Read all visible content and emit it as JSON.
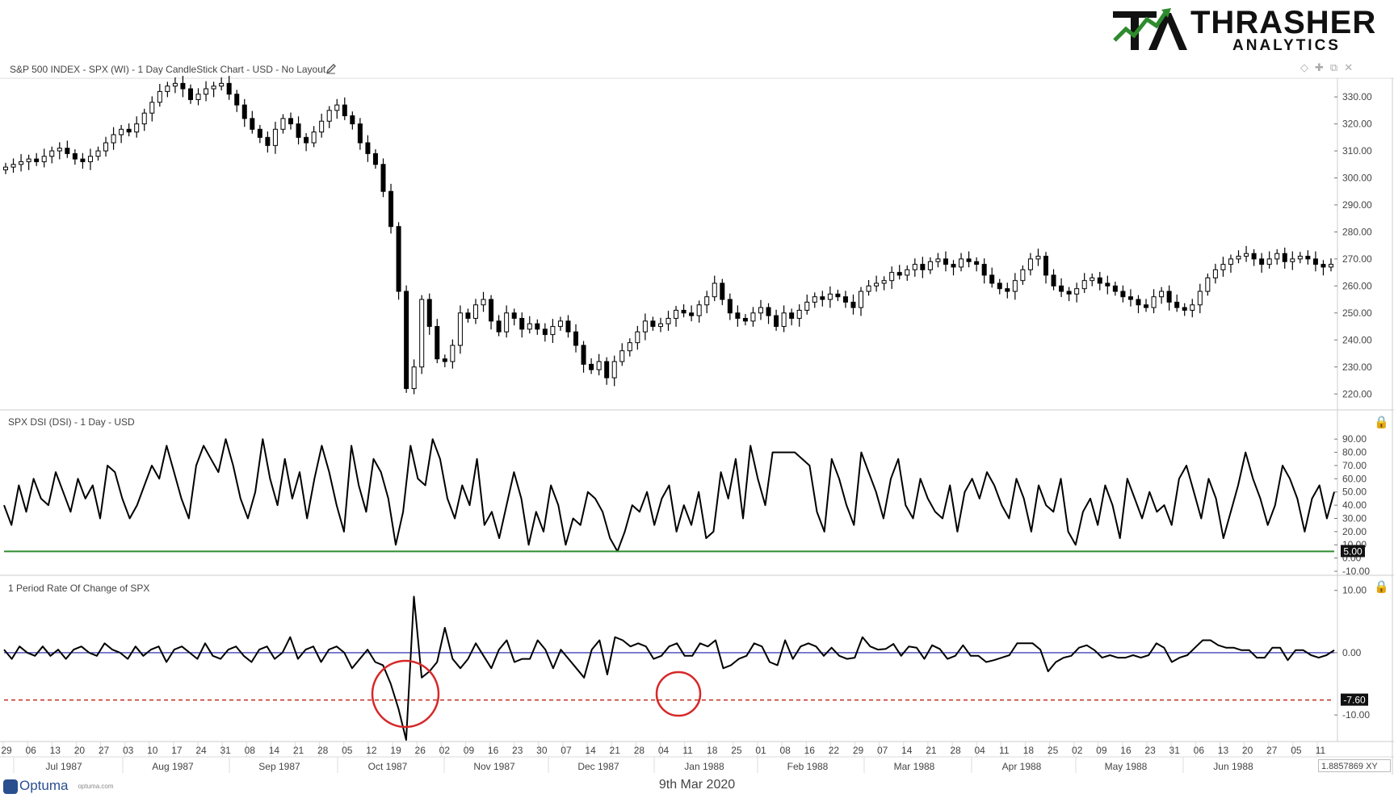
{
  "logo": {
    "word": "THRASHER",
    "sub": "ANALYTICS",
    "mark": "TA"
  },
  "panels": {
    "price_title": "S&P 500 INDEX - SPX (WI) - 1 Day CandleStick Chart - USD - No Layout",
    "dsi_title": "SPX DSI (DSI) - 1 Day - USD",
    "roc_title": "1 Period Rate Of Change of SPX"
  },
  "footer": {
    "date": "9th Mar 2020",
    "brand": "Optuma",
    "brand_sub": "optuma.com",
    "xy_value": "1.8857869",
    "xy_label": "XY"
  },
  "colors": {
    "candle": "#000000",
    "dsi_line": "#000000",
    "dsi_threshold": "#2e8b2e",
    "roc_zero": "#1a1aa8",
    "roc_threshold": "#c0392b",
    "circle": "#d62828"
  },
  "chart_data": [
    {
      "type": "candlestick",
      "title": "S&P 500 INDEX - SPX (WI) - 1 Day CandleStick Chart - USD - No Layout",
      "ylim": [
        215,
        336
      ],
      "yticks": [
        "220.00",
        "230.00",
        "240.00",
        "250.00",
        "260.00",
        "270.00",
        "280.00",
        "290.00",
        "300.00",
        "310.00",
        "320.00",
        "330.00"
      ],
      "close": [
        304,
        305,
        306,
        307,
        306,
        308,
        310,
        311,
        309,
        307,
        306,
        308,
        310,
        313,
        316,
        318,
        317,
        320,
        324,
        328,
        332,
        334,
        335,
        333,
        329,
        331,
        333,
        334,
        335,
        331,
        327,
        322,
        318,
        315,
        312,
        318,
        322,
        320,
        315,
        313,
        317,
        321,
        325,
        327,
        323,
        320,
        313,
        309,
        305,
        295,
        282,
        258,
        222,
        230,
        255,
        245,
        233,
        232,
        238,
        250,
        248,
        253,
        255,
        247,
        243,
        250,
        248,
        244,
        246,
        244,
        242,
        245,
        247,
        243,
        238,
        231,
        229,
        232,
        226,
        232,
        236,
        239,
        243,
        247,
        245,
        246,
        248,
        251,
        250,
        249,
        253,
        256,
        261,
        255,
        250,
        248,
        247,
        250,
        252,
        249,
        245,
        250,
        248,
        251,
        254,
        256,
        255,
        257,
        256,
        254,
        252,
        258,
        260,
        261,
        262,
        265,
        264,
        266,
        268,
        266,
        269,
        270,
        268,
        267,
        270,
        269,
        268,
        264,
        261,
        259,
        258,
        262,
        266,
        270,
        271,
        264,
        260,
        258,
        257,
        259,
        262,
        263,
        261,
        260,
        258,
        256,
        255,
        253,
        252,
        256,
        258,
        254,
        252,
        251,
        253,
        258,
        263,
        266,
        268,
        270,
        271,
        272,
        270,
        268,
        270,
        272,
        269,
        270,
        271,
        270,
        268,
        267,
        268
      ],
      "annotations": []
    },
    {
      "type": "line",
      "title": "SPX DSI (DSI) - 1 Day - USD",
      "ylim": [
        -10,
        95
      ],
      "yticks": [
        "90.00",
        "80.00",
        "70.00",
        "60.00",
        "50.00",
        "40.00",
        "30.00",
        "20.00",
        "10.00",
        "0.00",
        "-10.00"
      ],
      "threshold": 5.0,
      "threshold_label": "5.00",
      "values": [
        40,
        25,
        55,
        35,
        60,
        45,
        40,
        65,
        50,
        35,
        60,
        45,
        55,
        30,
        70,
        65,
        45,
        30,
        40,
        55,
        70,
        60,
        85,
        65,
        45,
        30,
        70,
        85,
        75,
        65,
        90,
        70,
        45,
        30,
        50,
        90,
        60,
        40,
        75,
        45,
        65,
        30,
        60,
        85,
        65,
        40,
        20,
        85,
        55,
        35,
        75,
        65,
        45,
        10,
        35,
        85,
        60,
        55,
        90,
        75,
        45,
        30,
        55,
        40,
        75,
        25,
        35,
        15,
        40,
        65,
        45,
        10,
        35,
        20,
        55,
        40,
        10,
        30,
        25,
        50,
        45,
        35,
        15,
        5,
        20,
        40,
        35,
        50,
        25,
        45,
        55,
        20,
        40,
        25,
        50,
        15,
        20,
        65,
        45,
        75,
        30,
        85,
        60,
        40,
        80,
        80,
        80,
        80,
        75,
        70,
        35,
        20,
        75,
        60,
        40,
        25,
        80,
        65,
        50,
        30,
        60,
        75,
        40,
        30,
        60,
        45,
        35,
        30,
        55,
        20,
        50,
        60,
        45,
        65,
        55,
        40,
        30,
        60,
        45,
        20,
        55,
        40,
        35,
        60,
        20,
        10,
        35,
        45,
        25,
        55,
        40,
        15,
        60,
        45,
        30,
        50,
        35,
        40,
        25,
        60,
        70,
        50,
        30,
        60,
        45,
        15,
        35,
        55,
        80,
        60,
        45,
        25,
        40,
        70,
        60,
        45,
        20,
        45,
        55,
        30,
        50
      ],
      "annotations": []
    },
    {
      "type": "line",
      "title": "1 Period Rate Of Change of SPX",
      "ylim": [
        -14,
        11
      ],
      "yticks": [
        "10.00",
        "0.00",
        "-10.00"
      ],
      "zero_line": 0,
      "threshold": -7.6,
      "threshold_label": "-7.60",
      "values": [
        0.5,
        -1,
        1,
        0,
        -0.5,
        1,
        -0.5,
        0.5,
        -1,
        0.5,
        1,
        0,
        -0.5,
        1.5,
        0.5,
        0,
        -1,
        1,
        -0.5,
        0.5,
        1,
        -1.5,
        0.5,
        1,
        0,
        -1,
        1.5,
        -0.5,
        -1,
        0.5,
        1,
        -0.5,
        -1.5,
        0.5,
        1,
        -1,
        0,
        2.5,
        -1,
        0.5,
        1,
        -1.5,
        0.5,
        1,
        0,
        -2.5,
        -1,
        0.5,
        -1.5,
        -2,
        -5,
        -9,
        -20,
        9,
        -4,
        -3,
        -1.5,
        4,
        -1,
        -2.5,
        -1,
        1.5,
        -0.5,
        -2.5,
        0.5,
        2,
        -1.5,
        -1,
        -1,
        2,
        0.5,
        -2.5,
        0.5,
        -1,
        -2.5,
        -4,
        0.5,
        2,
        -3.5,
        2.5,
        2,
        1,
        1.5,
        1,
        -1,
        -0.5,
        1,
        1.5,
        -0.5,
        -0.5,
        1.5,
        1,
        2,
        -2.5,
        -2,
        -1,
        -0.5,
        1.5,
        1,
        -1.5,
        -2,
        2,
        -1,
        1,
        1.5,
        1,
        -0.5,
        0.8,
        -0.5,
        -1,
        -0.8,
        2.5,
        1,
        0.5,
        0.6,
        1.4,
        -0.5,
        1,
        0.8,
        -1,
        1.2,
        0.6,
        -1,
        -0.5,
        1.2,
        -0.5,
        -0.5,
        -1.5,
        -1.2,
        -0.8,
        -0.4,
        1.5,
        1.5,
        1.5,
        0.5,
        -3,
        -1.5,
        -0.8,
        -0.5,
        0.8,
        1.2,
        0.4,
        -0.8,
        -0.4,
        -0.8,
        -0.8,
        -0.4,
        -0.8,
        -0.4,
        1.5,
        0.8,
        -1.5,
        -0.8,
        -0.4,
        0.8,
        2,
        2,
        1.2,
        0.8,
        0.8,
        0.4,
        0.4,
        -0.8,
        -0.8,
        0.8,
        0.8,
        -1.2,
        0.4,
        0.4,
        -0.4,
        -0.8,
        -0.4,
        0.4
      ],
      "annotations": [
        {
          "type": "circle",
          "at": "Oct 1987"
        },
        {
          "type": "circle",
          "at": "Jan 1988"
        }
      ]
    }
  ],
  "x_axis": {
    "day_ticks": [
      "29",
      "06",
      "13",
      "20",
      "27",
      "03",
      "10",
      "17",
      "24",
      "31",
      "08",
      "14",
      "21",
      "28",
      "05",
      "12",
      "19",
      "26",
      "02",
      "09",
      "16",
      "23",
      "30",
      "07",
      "14",
      "21",
      "28",
      "04",
      "11",
      "18",
      "25",
      "01",
      "08",
      "16",
      "22",
      "29",
      "07",
      "14",
      "21",
      "28",
      "04",
      "11",
      "18",
      "25",
      "02",
      "09",
      "16",
      "23",
      "31",
      "06",
      "13",
      "20",
      "27",
      "05",
      "11"
    ],
    "month_labels": [
      "Jul 1987",
      "Aug 1987",
      "Sep 1987",
      "Oct 1987",
      "Nov 1987",
      "Dec 1987",
      "Jan 1988",
      "Feb 1988",
      "Mar 1988",
      "Apr 1988",
      "May 1988",
      "Jun 1988"
    ]
  }
}
